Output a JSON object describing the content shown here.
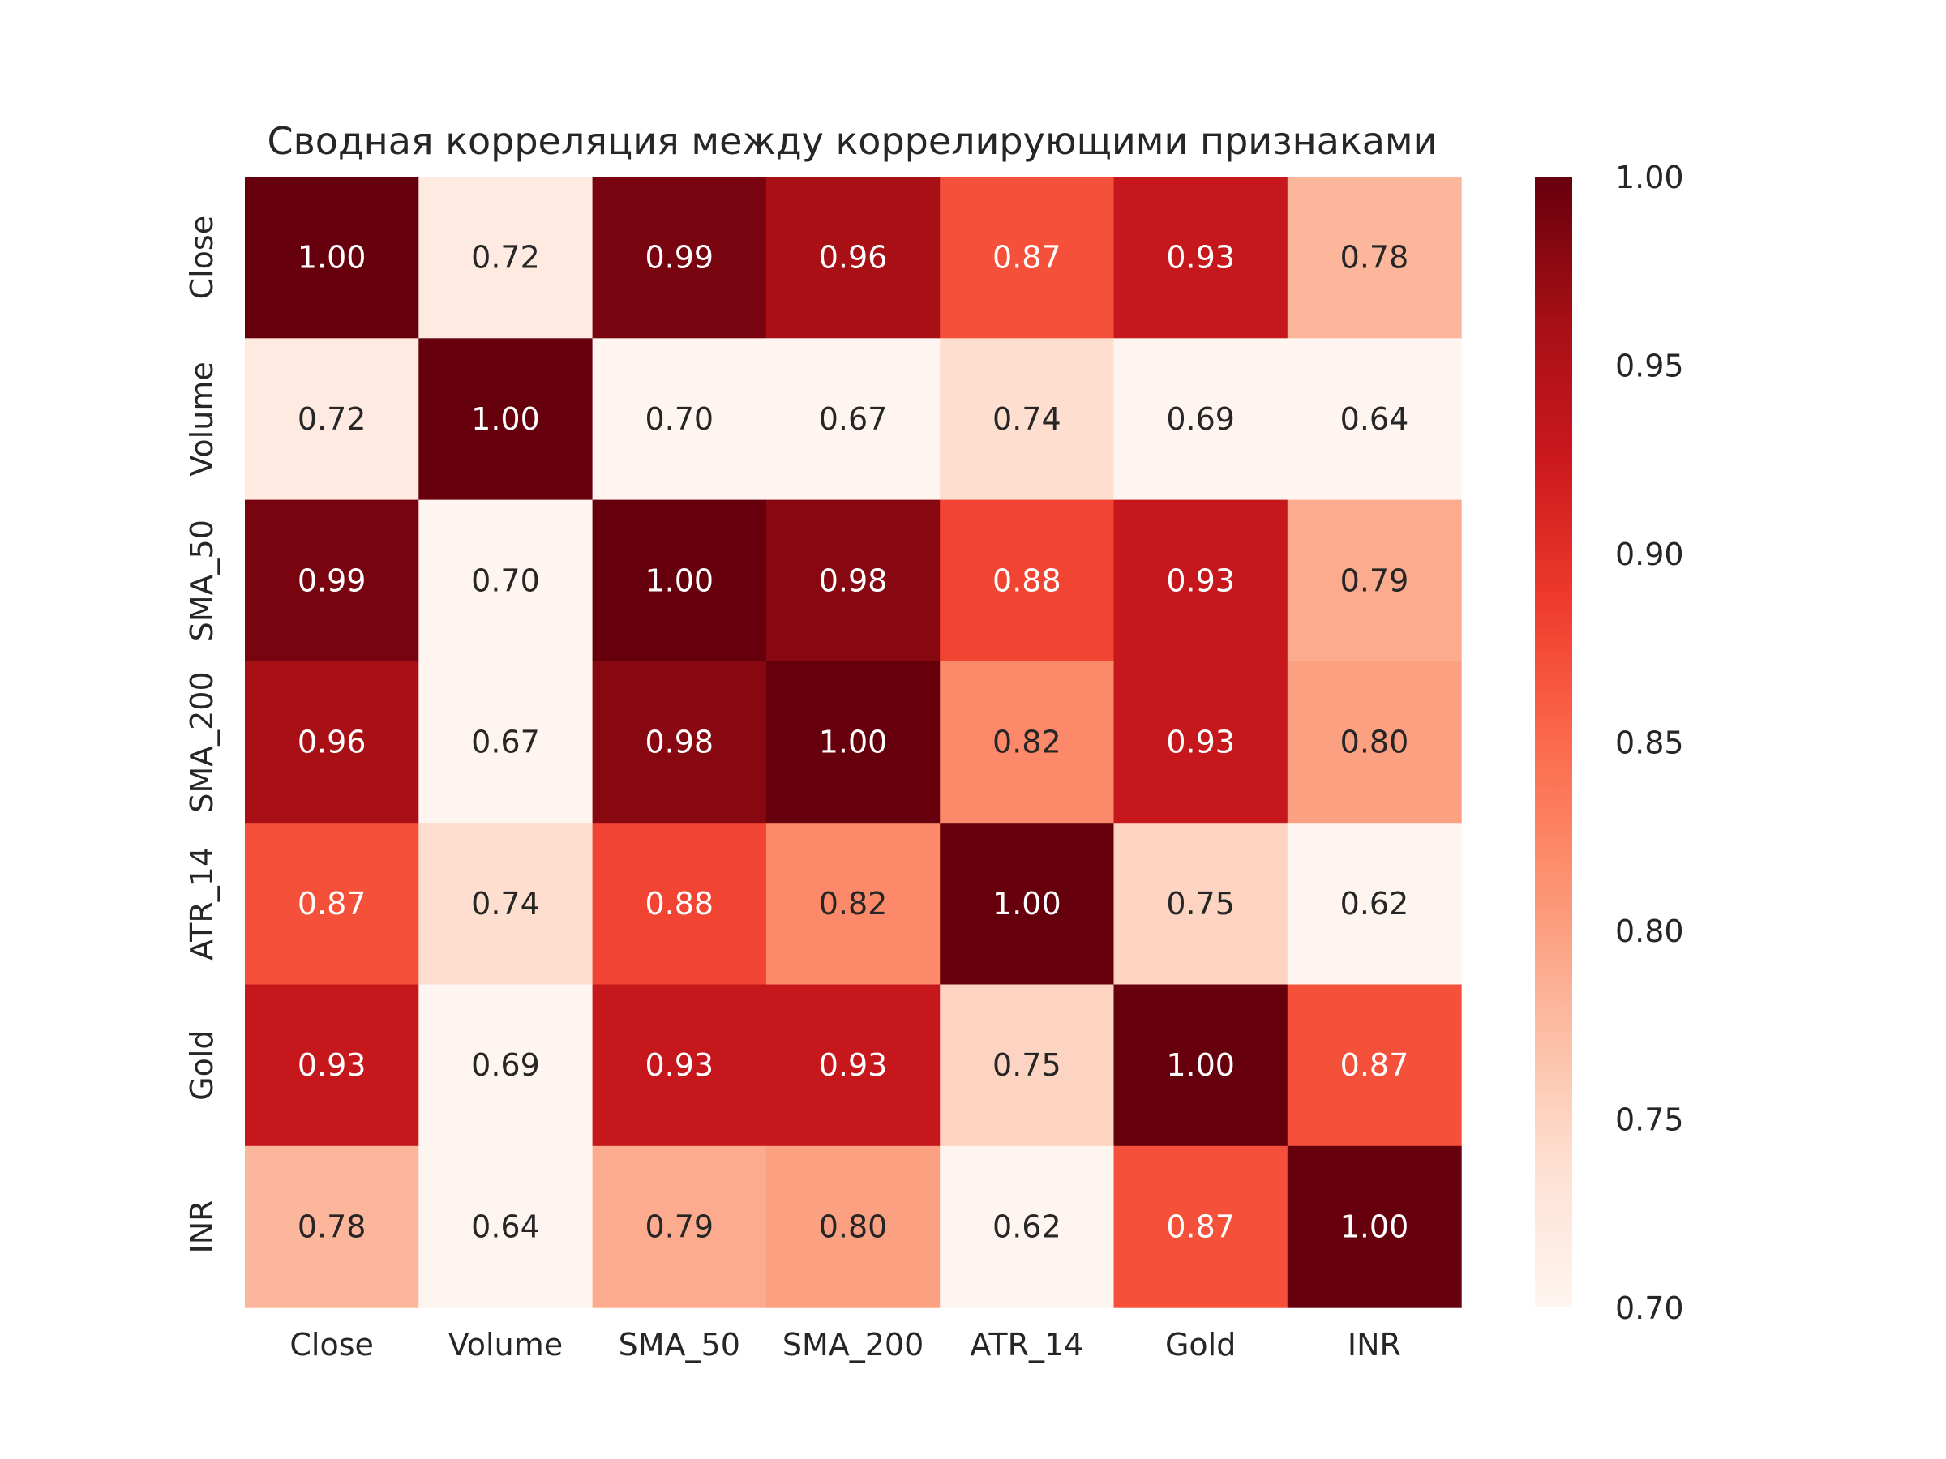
{
  "chart_data": {
    "type": "heatmap",
    "title": "Сводная корреляция между коррелирующими признаками",
    "rows": [
      "Close",
      "Volume",
      "SMA_50",
      "SMA_200",
      "ATR_14",
      "Gold",
      "INR"
    ],
    "columns": [
      "Close",
      "Volume",
      "SMA_50",
      "SMA_200",
      "ATR_14",
      "Gold",
      "INR"
    ],
    "values": [
      [
        1.0,
        0.72,
        0.99,
        0.96,
        0.87,
        0.93,
        0.78
      ],
      [
        0.72,
        1.0,
        0.7,
        0.67,
        0.74,
        0.69,
        0.64
      ],
      [
        0.99,
        0.7,
        1.0,
        0.98,
        0.88,
        0.93,
        0.79
      ],
      [
        0.96,
        0.67,
        0.98,
        1.0,
        0.82,
        0.93,
        0.8
      ],
      [
        0.87,
        0.74,
        0.88,
        0.82,
        1.0,
        0.75,
        0.62
      ],
      [
        0.93,
        0.69,
        0.93,
        0.93,
        0.75,
        1.0,
        0.87
      ],
      [
        0.78,
        0.64,
        0.79,
        0.8,
        0.62,
        0.87,
        1.0
      ]
    ],
    "colorscale": "Reds",
    "vmin": 0.7,
    "vmax": 1.0,
    "colorbar_ticks": [
      "0.70",
      "0.75",
      "0.80",
      "0.85",
      "0.90",
      "0.95",
      "1.00"
    ],
    "legend_position": "right"
  }
}
